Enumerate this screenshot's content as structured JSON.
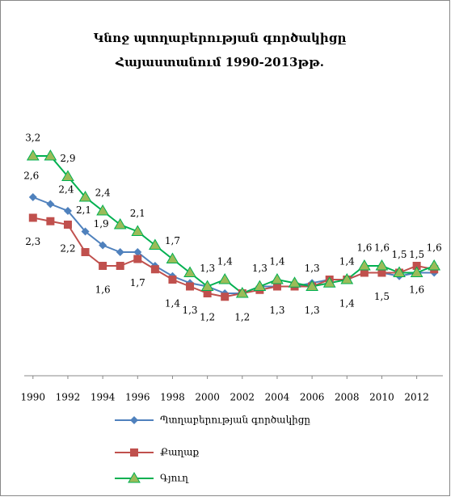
{
  "chart_data": {
    "type": "line",
    "title": [
      "Կնոջ պտղաբերության գործակիցը",
      "Հայաստանում 1990-2013թթ."
    ],
    "x": [
      1990,
      1991,
      1992,
      1993,
      1994,
      1995,
      1996,
      1997,
      1998,
      1999,
      2000,
      2001,
      2002,
      2003,
      2004,
      2005,
      2006,
      2007,
      2008,
      2009,
      2010,
      2011,
      2012,
      2013
    ],
    "xlim": [
      1989.5,
      2013.5
    ],
    "xticks": [
      1990,
      1992,
      1994,
      1996,
      1998,
      2000,
      2002,
      2004,
      2006,
      2008,
      2010,
      2012
    ],
    "ylim": [
      0,
      3.5
    ],
    "series": [
      {
        "name": "Պտղաբերության գործակիցը",
        "color": "#4f81bd",
        "marker": "diamond",
        "values": [
          2.6,
          2.5,
          2.4,
          2.1,
          1.9,
          1.8,
          1.8,
          1.6,
          1.45,
          1.35,
          1.3,
          1.2,
          1.2,
          1.3,
          1.3,
          1.3,
          1.35,
          1.4,
          1.4,
          1.5,
          1.5,
          1.45,
          1.5,
          1.5
        ],
        "value_labels": [
          "2,6",
          null,
          "2,4",
          "2,1",
          "1,9",
          null,
          null,
          null,
          null,
          null,
          null,
          null,
          null,
          null,
          null,
          null,
          null,
          null,
          null,
          null,
          null,
          null,
          null,
          null
        ]
      },
      {
        "name": "Քաղաք",
        "color": "#c0504d",
        "marker": "square",
        "values": [
          2.3,
          2.25,
          2.2,
          1.8,
          1.6,
          1.6,
          1.7,
          1.55,
          1.4,
          1.3,
          1.2,
          1.15,
          1.2,
          1.25,
          1.3,
          1.3,
          1.3,
          1.4,
          1.4,
          1.5,
          1.5,
          1.5,
          1.6,
          1.55
        ],
        "value_labels": [
          "2,3",
          null,
          "2,2",
          null,
          "1,6",
          null,
          "1,7",
          null,
          "1,4",
          "1,3",
          "1,2",
          null,
          "1,2",
          null,
          "1,3",
          null,
          "1,3",
          null,
          "1,4",
          null,
          "1,5",
          null,
          "1,6",
          null
        ]
      },
      {
        "name": "Գյուղ",
        "color": "#00b050",
        "marker": "triangle",
        "values": [
          3.2,
          3.2,
          2.9,
          2.6,
          2.4,
          2.2,
          2.1,
          1.9,
          1.7,
          1.5,
          1.3,
          1.4,
          1.2,
          1.3,
          1.4,
          1.35,
          1.3,
          1.35,
          1.4,
          1.6,
          1.6,
          1.5,
          1.5,
          1.6
        ],
        "value_labels": [
          "3,2",
          null,
          "2,9",
          null,
          "2,4",
          null,
          "2,1",
          null,
          "1,7",
          null,
          "1,3",
          "1,4",
          null,
          "1,3",
          "1,4",
          null,
          "1,3",
          null,
          "1,4",
          "1,6",
          "1,6",
          "1,5",
          "1,5",
          "1,6"
        ]
      }
    ]
  }
}
